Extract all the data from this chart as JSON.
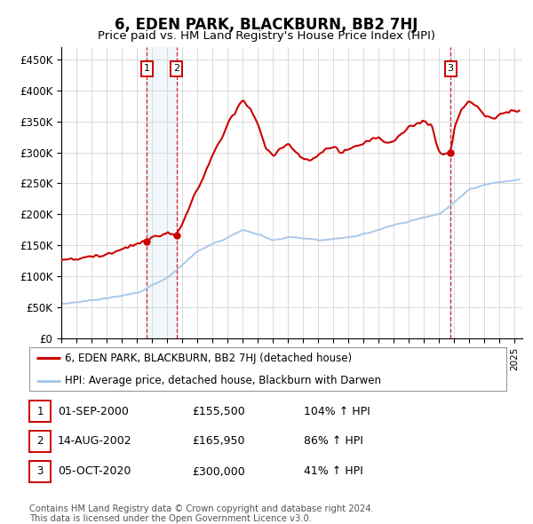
{
  "title": "6, EDEN PARK, BLACKBURN, BB2 7HJ",
  "subtitle": "Price paid vs. HM Land Registry's House Price Index (HPI)",
  "ylabel_ticks": [
    "£0",
    "£50K",
    "£100K",
    "£150K",
    "£200K",
    "£250K",
    "£300K",
    "£350K",
    "£400K",
    "£450K"
  ],
  "ylim": [
    0,
    470000
  ],
  "xlim_start": 1995.0,
  "xlim_end": 2025.5,
  "hpi_color": "#aac8e8",
  "price_color": "#cc0000",
  "sale_dates": [
    2000.67,
    2002.62,
    2020.75
  ],
  "sale_prices": [
    155500,
    165950,
    300000
  ],
  "sale_labels": [
    "1",
    "2",
    "3"
  ],
  "legend_entries": [
    "6, EDEN PARK, BLACKBURN, BB2 7HJ (detached house)",
    "HPI: Average price, detached house, Blackburn with Darwen"
  ],
  "table_rows": [
    {
      "num": "1",
      "date": "01-SEP-2000",
      "price": "£155,500",
      "hpi": "104% ↑ HPI"
    },
    {
      "num": "2",
      "date": "14-AUG-2002",
      "price": "£165,950",
      "hpi": "86% ↑ HPI"
    },
    {
      "num": "3",
      "date": "05-OCT-2020",
      "price": "£300,000",
      "hpi": "41% ↑ HPI"
    }
  ],
  "footnote": "Contains HM Land Registry data © Crown copyright and database right 2024.\nThis data is licensed under the Open Government Licence v3.0.",
  "background_color": "#ffffff",
  "grid_color": "#cccccc",
  "shade_color": "#dce9f5"
}
